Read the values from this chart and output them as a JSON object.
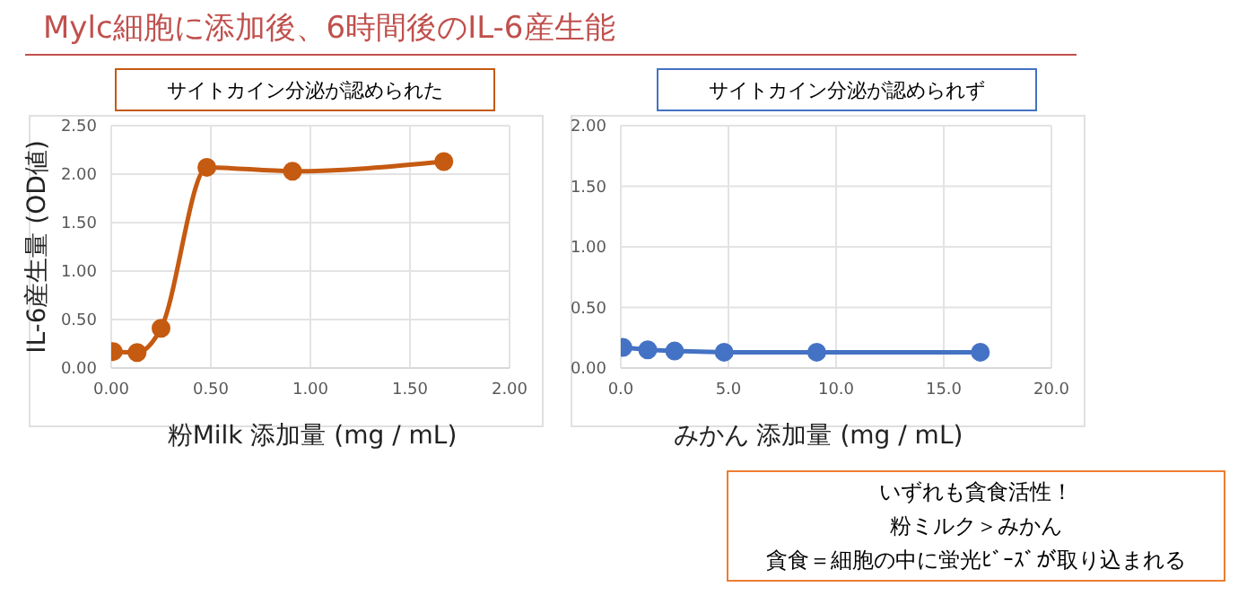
{
  "chart_data": [
    {
      "type": "line",
      "title": "Mylc細胞に添加後、6時間後のIL-6産生能",
      "xlabel": "粉Milk 添加量 (mg / mL)",
      "ylabel": "IL-6産生量 (OD値)",
      "annotations": [
        "サイトカイン分泌が認められた"
      ],
      "x": [
        0.01,
        0.13,
        0.25,
        0.48,
        0.91,
        1.67
      ],
      "series": [
        {
          "color": "#c55a11",
          "values": [
            0.17,
            0.16,
            0.41,
            2.07,
            2.03,
            2.13
          ]
        }
      ],
      "xlim": [
        0,
        2
      ],
      "xticks": [
        {
          "value": 0,
          "label": "0.00"
        },
        {
          "value": 0.5,
          "label": "0.50"
        },
        {
          "value": 1,
          "label": "1.00"
        },
        {
          "value": 1.5,
          "label": "1.50"
        },
        {
          "value": 2,
          "label": "2.00"
        }
      ],
      "ylim": [
        0,
        2.5
      ],
      "yticks": [
        {
          "value": 0,
          "label": "0.00"
        },
        {
          "value": 0.5,
          "label": "0.50"
        },
        {
          "value": 1,
          "label": "1.00"
        },
        {
          "value": 1.5,
          "label": "1.50"
        },
        {
          "value": 2,
          "label": "2.00"
        },
        {
          "value": 2.5,
          "label": "2.50"
        }
      ],
      "grid": true,
      "marker": "circle",
      "line_style": "solid"
    },
    {
      "type": "line",
      "xlabel": "みかん 添加量 (mg / mL)",
      "annotations": [
        "サイトカイン分泌が認められず",
        "いずれも貪食活性！",
        "粉ミルク＞みかん",
        "貪食＝細胞の中に蛍光ﾋﾞｰｽﾞが取り込まれる"
      ],
      "x": [
        0.1,
        1.25,
        2.5,
        4.8,
        9.1,
        16.7
      ],
      "series": [
        {
          "color": "#4472c4",
          "values": [
            0.17,
            0.15,
            0.14,
            0.13,
            0.13,
            0.13
          ]
        }
      ],
      "xlim": [
        0,
        20
      ],
      "xticks": [
        {
          "value": 0,
          "label": "0.0"
        },
        {
          "value": 5,
          "label": "5.0"
        },
        {
          "value": 10,
          "label": "10.0"
        },
        {
          "value": 15,
          "label": "15.0"
        },
        {
          "value": 20,
          "label": "20.0"
        }
      ],
      "ylim": [
        0,
        2
      ],
      "yticks": [
        {
          "value": 0,
          "label": "0.00"
        },
        {
          "value": 0.5,
          "label": "0.50"
        },
        {
          "value": 1,
          "label": "1.00"
        },
        {
          "value": 1.5,
          "label": "1.50"
        },
        {
          "value": 2,
          "label": "2.00"
        }
      ],
      "grid": true,
      "marker": "circle",
      "line_style": "solid"
    }
  ]
}
